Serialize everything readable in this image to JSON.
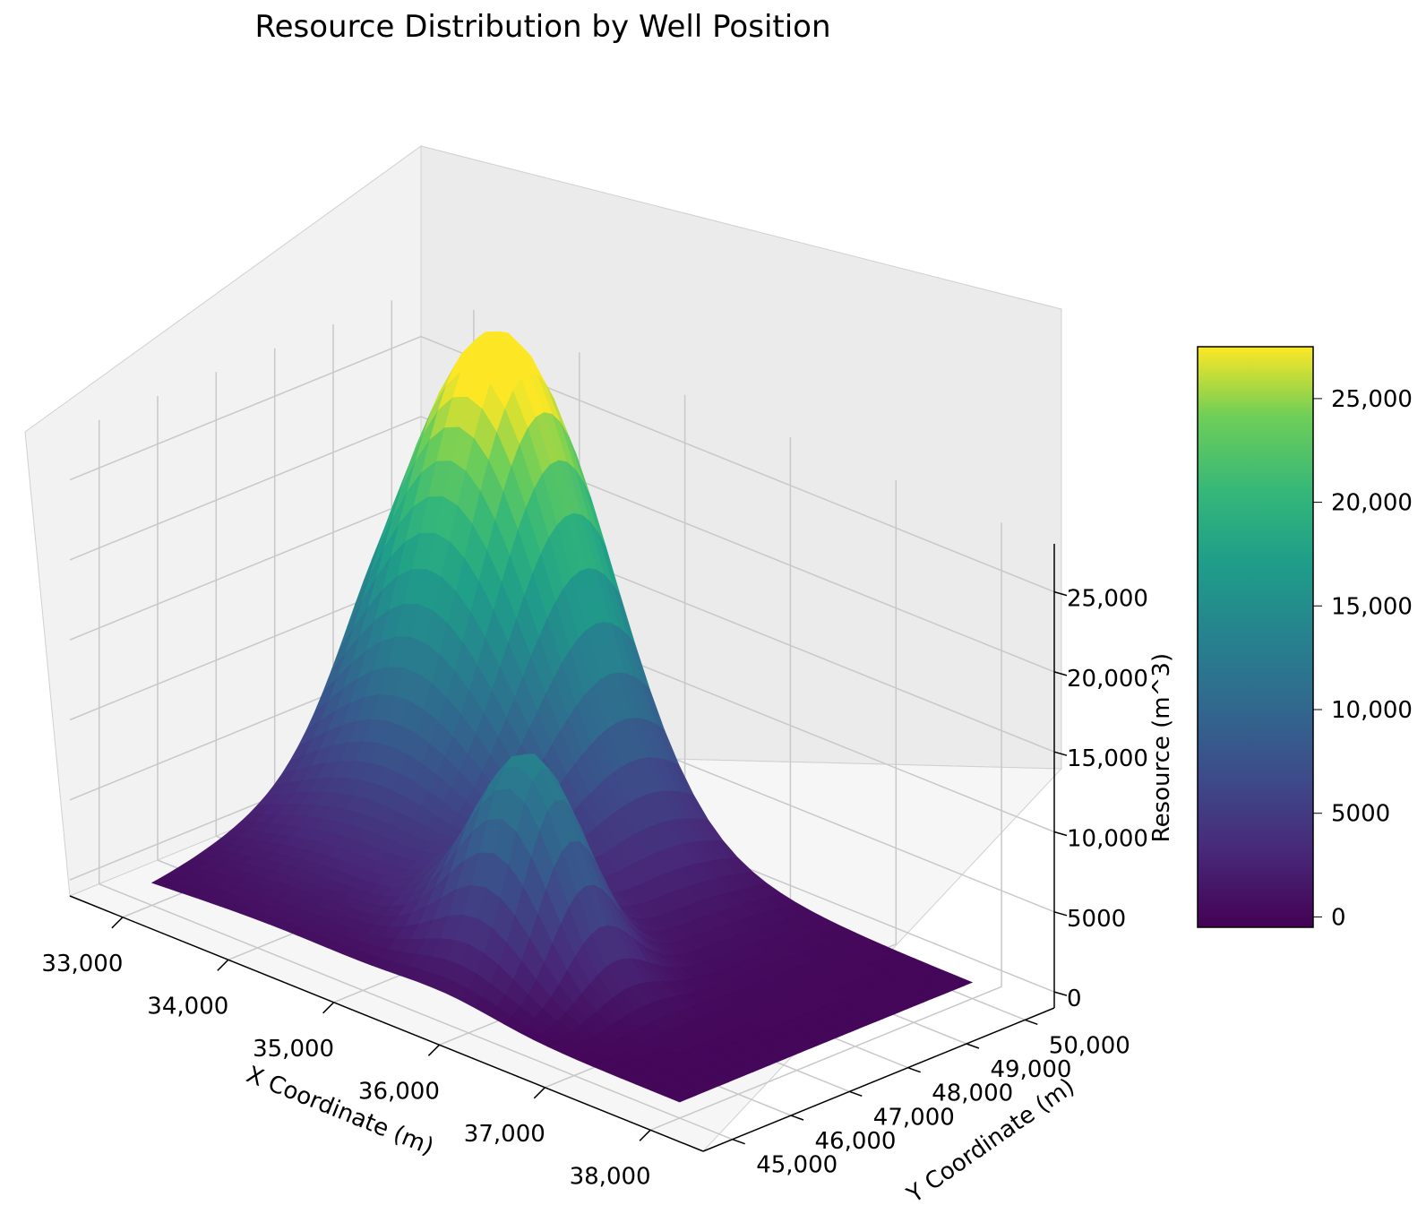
{
  "chart_data": {
    "type": "surface",
    "title": "Resource Distribution by Well Position",
    "xlabel": "X Coordinate (m)",
    "ylabel": "Y Coordinate (m)",
    "zlabel": "Resource (m^3)",
    "xlim": [
      32500,
      38500
    ],
    "ylim": [
      44500,
      50500
    ],
    "zlim": [
      -1000,
      28000
    ],
    "x_ticks": [
      "33,000",
      "34,000",
      "35,000",
      "36,000",
      "37,000",
      "38,000"
    ],
    "y_ticks": [
      "45,000",
      "46,000",
      "47,000",
      "48,000",
      "49,000",
      "50,000"
    ],
    "z_ticks": [
      "0",
      "5000",
      "10,000",
      "15,000",
      "20,000",
      "25,000"
    ],
    "colorbar": {
      "colormap": "viridis",
      "range": [
        -500,
        27500
      ],
      "ticks": [
        "0",
        "5000",
        "10,000",
        "15,000",
        "20,000",
        "25,000"
      ]
    },
    "surface_features": [
      {
        "name": "main peak",
        "x": 33800,
        "y": 49500,
        "z": 27500
      },
      {
        "name": "secondary peak",
        "x": 35800,
        "y": 46400,
        "z": 12500
      },
      {
        "name": "trough",
        "x": 37200,
        "y": 46800,
        "z": 0
      }
    ],
    "grid": true
  }
}
